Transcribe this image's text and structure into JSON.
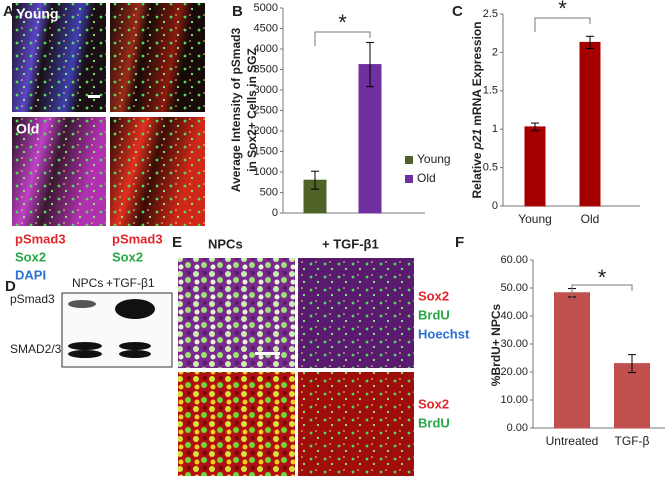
{
  "panel_labels": [
    "A",
    "B",
    "C",
    "D",
    "E",
    "F"
  ],
  "panel_a": {
    "image_labels": [
      "Young",
      "Old"
    ],
    "stain_left": [
      "pSmad3",
      "Sox2",
      "DAPI"
    ],
    "stain_right": [
      "pSmad3",
      "Sox2"
    ]
  },
  "panel_d": {
    "lanes": [
      "NPCs",
      "+TGF-β1"
    ],
    "bands": [
      "pSmad3",
      "SMAD2/3"
    ]
  },
  "panel_e": {
    "columns": [
      "NPCs",
      "+ TGF-β1"
    ],
    "stain_top": [
      "Sox2",
      "BrdU",
      "Hoechst"
    ],
    "stain_bottom": [
      "Sox2",
      "BrdU"
    ]
  },
  "chart_data": [
    {
      "type": "bar",
      "y_label": [
        "Average Intensity of pSmad3",
        "in Sox2+ Cells in SGZ"
      ],
      "annotation": "*",
      "series": [
        {
          "name": "Young",
          "color": "#4f6228",
          "values": [
            800
          ],
          "errors": [
            220
          ]
        },
        {
          "name": "Old",
          "color": "#7030a0",
          "values": [
            3620
          ],
          "errors": [
            540
          ]
        }
      ],
      "ylim": [
        0,
        5000
      ],
      "yticks": [
        0,
        500,
        1000,
        1500,
        2000,
        2500,
        3000,
        3500,
        4000,
        4500,
        5000
      ],
      "legend": "right"
    },
    {
      "type": "bar",
      "y_label": [
        "Relative",
        "p21",
        "mRNA Expression"
      ],
      "annotation": "*",
      "categories": [
        "Young",
        "Old"
      ],
      "values": [
        1.03,
        2.13
      ],
      "errors": [
        0.05,
        0.08
      ],
      "color": "#a50000",
      "ylim": [
        0,
        2.5
      ],
      "yticks": [
        0,
        0.5,
        1,
        1.5,
        2,
        2.5
      ]
    },
    {
      "type": "bar",
      "y_label": "%BrdU+ NPCs",
      "annotation": "*",
      "categories": [
        "Untreated",
        "TGF-β"
      ],
      "values": [
        48.3,
        23.0
      ],
      "errors": [
        1.5,
        3.2
      ],
      "color": "#c0504d",
      "ylim": [
        0,
        60
      ],
      "yticks": [
        {
          "value": 0,
          "label": "0.00"
        },
        {
          "value": 10,
          "label": "10.00"
        },
        {
          "value": 20,
          "label": "20.00"
        },
        {
          "value": 30,
          "label": "30.00"
        },
        {
          "value": 40,
          "label": "40.00"
        },
        {
          "value": 50,
          "label": "50.00"
        },
        {
          "value": 60,
          "label": "60.00"
        }
      ]
    }
  ]
}
